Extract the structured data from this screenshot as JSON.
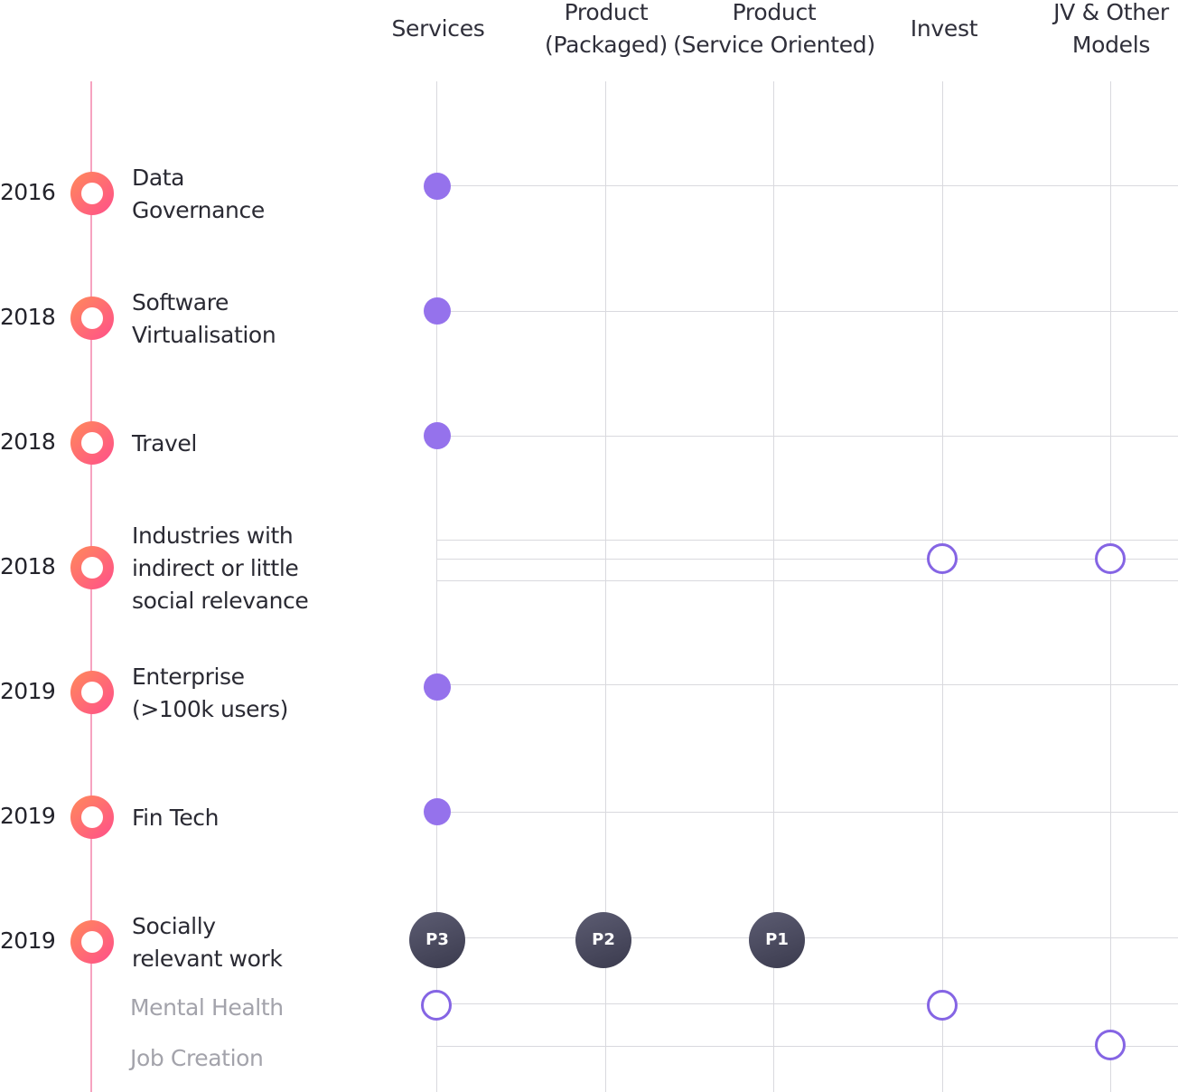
{
  "columns": [
    {
      "label": "Services"
    },
    {
      "label": "Product\n(Packaged)"
    },
    {
      "label": "Product\n(Service Oriented)"
    },
    {
      "label": "Invest"
    },
    {
      "label": "JV & Other\nModels"
    }
  ],
  "rows": [
    {
      "year": "2016",
      "label": "Data\nGovernance",
      "markers": [
        {
          "column": "Services",
          "style": "filled"
        }
      ]
    },
    {
      "year": "2018",
      "label": "Software\nVirtualisation",
      "markers": [
        {
          "column": "Services",
          "style": "filled"
        }
      ]
    },
    {
      "year": "2018",
      "label": "Travel",
      "markers": [
        {
          "column": "Services",
          "style": "filled"
        }
      ]
    },
    {
      "year": "2018",
      "label": "Industries with\nindirect or little\nsocial relevance",
      "markers": [
        {
          "column": "Invest",
          "style": "outline"
        },
        {
          "column": "JV & Other Models",
          "style": "outline"
        }
      ]
    },
    {
      "year": "2019",
      "label": "Enterprise\n(>100k users)",
      "markers": [
        {
          "column": "Services",
          "style": "filled"
        }
      ]
    },
    {
      "year": "2019",
      "label": "Fin Tech",
      "markers": [
        {
          "column": "Services",
          "style": "filled"
        }
      ]
    },
    {
      "year": "2019",
      "label": "Socially\nrelevant work",
      "markers": [
        {
          "column": "Services",
          "style": "priority",
          "text": "P3"
        },
        {
          "column": "Product (Packaged)",
          "style": "priority",
          "text": "P2"
        },
        {
          "column": "Product (Service Oriented)",
          "style": "priority",
          "text": "P1"
        }
      ]
    }
  ],
  "subrows": [
    {
      "label": "Mental Health",
      "markers": [
        {
          "column": "Services",
          "style": "outline"
        },
        {
          "column": "Invest",
          "style": "outline"
        }
      ]
    },
    {
      "label": "Job Creation",
      "markers": [
        {
          "column": "JV & Other Models",
          "style": "outline"
        }
      ]
    }
  ],
  "colors": {
    "timeline": "#f7a3c0",
    "ring_start": "#ff8a5a",
    "ring_end": "#ff4f8b",
    "filled_dot": "#9572ec",
    "outline_dot": "#8565e4",
    "priority_badge": "#4a4a5e",
    "grid": "#d9d9de",
    "sublabel": "#a3a3ab"
  }
}
